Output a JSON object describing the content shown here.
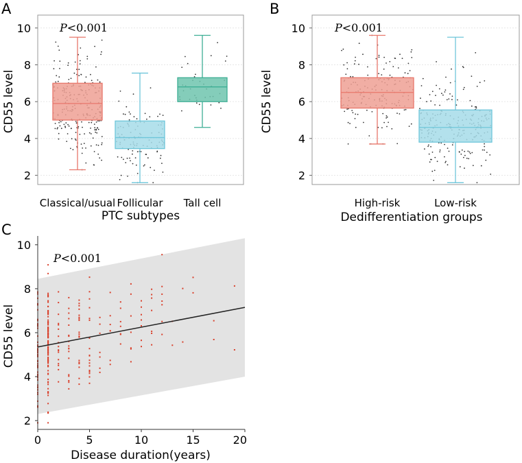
{
  "figure": {
    "panels": [
      "A",
      "B",
      "C"
    ]
  },
  "chart_data": [
    {
      "panel": "A",
      "type": "box",
      "title": "",
      "annotation": {
        "italic": "P",
        "rest": "<0.001"
      },
      "xlabel": "PTC subtypes",
      "ylabel": "CD55 level",
      "ylim": [
        1.5,
        10.7
      ],
      "yticks": [
        2,
        4,
        6,
        8,
        10
      ],
      "grid": true,
      "categories": [
        "Classical/usual",
        "Follicular",
        "Tall cell"
      ],
      "series": [
        {
          "name": "Classical/usual",
          "color": "#E8776B",
          "fill": "#EFA094",
          "min": 2.3,
          "q1": 5.0,
          "median": 5.9,
          "q3": 7.0,
          "max": 9.5,
          "n_points": 240
        },
        {
          "name": "Follicular",
          "color": "#6FC6DA",
          "fill": "#A6DCE9",
          "min": 1.6,
          "q1": 3.45,
          "median": 4.05,
          "q3": 4.95,
          "max": 7.55,
          "n_points": 110
        },
        {
          "name": "Tall cell",
          "color": "#3DAE94",
          "fill": "#6FC4AE",
          "min": 4.6,
          "q1": 6.0,
          "median": 6.8,
          "q3": 7.3,
          "max": 9.6,
          "n_points": 35
        }
      ]
    },
    {
      "panel": "B",
      "type": "box",
      "title": "",
      "annotation": {
        "italic": "P",
        "rest": "<0.001"
      },
      "xlabel": "Dedifferentiation groups",
      "ylabel": "CD55 level",
      "ylim": [
        1.5,
        10.7
      ],
      "yticks": [
        2,
        4,
        6,
        8,
        10
      ],
      "grid": true,
      "categories": [
        "High-risk",
        "Low-risk"
      ],
      "series": [
        {
          "name": "High-risk",
          "color": "#E8776B",
          "fill": "#EFA094",
          "min": 3.7,
          "q1": 5.65,
          "median": 6.5,
          "q3": 7.3,
          "max": 9.6,
          "n_points": 170
        },
        {
          "name": "Low-risk",
          "color": "#6FC6DA",
          "fill": "#A6DCE9",
          "min": 1.6,
          "q1": 3.8,
          "median": 4.6,
          "q3": 5.55,
          "max": 9.5,
          "n_points": 230
        }
      ]
    },
    {
      "panel": "C",
      "type": "scatter",
      "title": "",
      "annotation": {
        "italic": "P",
        "rest": "<0.001"
      },
      "xlabel": "Disease duration(years)",
      "ylabel": "CD55 level",
      "xlim": [
        0,
        20
      ],
      "ylim": [
        1.6,
        10.4
      ],
      "xticks": [
        0,
        5,
        10,
        15,
        20
      ],
      "yticks": [
        2,
        4,
        6,
        8,
        10
      ],
      "grid": false,
      "point_color": "#D9402B",
      "band_color": "#E3E3E3",
      "line_color": "#222222",
      "fit_line": {
        "x": [
          0,
          20
        ],
        "y": [
          5.35,
          7.15
        ]
      },
      "band": {
        "x": [
          0,
          20
        ],
        "upper": [
          8.45,
          10.3
        ],
        "lower": [
          2.3,
          4.0
        ]
      },
      "x_values_dense": [
        0,
        1
      ],
      "x_values_sparse": [
        2,
        3,
        4,
        5,
        6,
        7,
        8,
        9,
        10,
        11,
        12,
        13,
        14,
        15,
        17,
        19
      ]
    }
  ]
}
